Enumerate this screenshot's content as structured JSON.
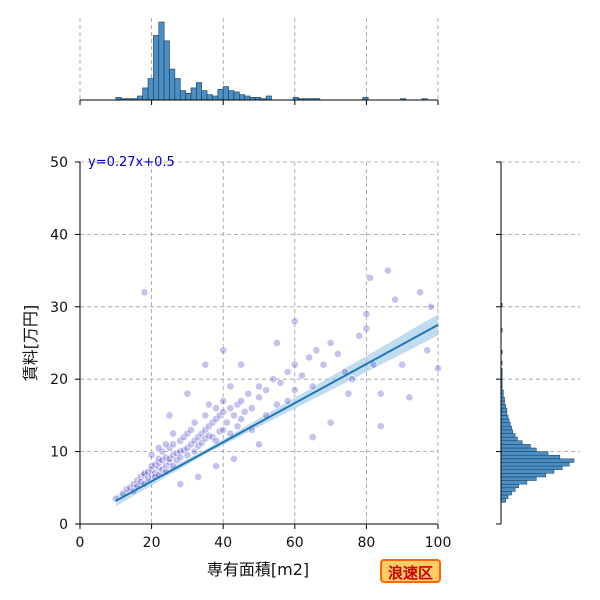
{
  "badge": "浪速区",
  "colors": {
    "points": "#3b36c8",
    "hist": "#4b8fc4",
    "hist_edge": "#1c3a57",
    "regression": "#1f77b4",
    "ci_band": "#a8cde8",
    "grid": "#9a9a9a",
    "badge_bg": "#ffcc66",
    "badge_border": "#ff6600",
    "badge_text": "#cc0000"
  },
  "chart_data": {
    "type": "scatter",
    "title": "",
    "xlabel": "専有面積[m2]",
    "ylabel": "賃料[万円]",
    "xlim": [
      0,
      100
    ],
    "ylim": [
      0,
      50
    ],
    "xticks": [
      0,
      20,
      40,
      60,
      80,
      100
    ],
    "yticks": [
      0,
      10,
      20,
      30,
      40,
      50
    ],
    "grid": true,
    "regression": {
      "slope": 0.27,
      "intercept": 0.5,
      "x_range": [
        10,
        100
      ],
      "equation_label": "y=0.27x+0.5"
    },
    "points": [
      [
        10,
        3.5
      ],
      [
        12,
        4.2
      ],
      [
        13,
        4.8
      ],
      [
        14,
        5.0
      ],
      [
        15,
        5.5
      ],
      [
        15,
        4.5
      ],
      [
        16,
        6.0
      ],
      [
        16,
        5.2
      ],
      [
        17,
        6.5
      ],
      [
        17,
        5.8
      ],
      [
        18,
        6.8
      ],
      [
        18,
        7.0
      ],
      [
        18,
        5.5
      ],
      [
        19,
        7.2
      ],
      [
        19,
        6.3
      ],
      [
        20,
        6.8
      ],
      [
        20,
        7.5
      ],
      [
        20,
        8.0
      ],
      [
        20,
        9.5
      ],
      [
        21,
        7.0
      ],
      [
        21,
        8.2
      ],
      [
        21,
        6.5
      ],
      [
        22,
        7.8
      ],
      [
        22,
        8.5
      ],
      [
        22,
        9.0
      ],
      [
        22,
        6.8
      ],
      [
        23,
        7.5
      ],
      [
        23,
        8.8
      ],
      [
        23,
        10.0
      ],
      [
        24,
        8.0
      ],
      [
        24,
        9.2
      ],
      [
        24,
        7.2
      ],
      [
        25,
        8.5
      ],
      [
        25,
        10.5
      ],
      [
        25,
        9.0
      ],
      [
        26,
        9.5
      ],
      [
        26,
        8.0
      ],
      [
        26,
        11.0
      ],
      [
        27,
        9.8
      ],
      [
        27,
        8.8
      ],
      [
        28,
        10.0
      ],
      [
        28,
        11.5
      ],
      [
        28,
        9.2
      ],
      [
        29,
        10.2
      ],
      [
        29,
        12.0
      ],
      [
        30,
        10.5
      ],
      [
        30,
        9.5
      ],
      [
        30,
        12.5
      ],
      [
        31,
        11.0
      ],
      [
        31,
        13.0
      ],
      [
        32,
        11.5
      ],
      [
        32,
        10.0
      ],
      [
        32,
        14.0
      ],
      [
        33,
        12.0
      ],
      [
        33,
        10.8
      ],
      [
        34,
        12.5
      ],
      [
        34,
        11.2
      ],
      [
        35,
        13.0
      ],
      [
        35,
        11.8
      ],
      [
        35,
        15.0
      ],
      [
        36,
        13.5
      ],
      [
        36,
        12.2
      ],
      [
        37,
        14.0
      ],
      [
        37,
        12.0
      ],
      [
        38,
        14.5
      ],
      [
        38,
        11.5
      ],
      [
        38,
        16.0
      ],
      [
        39,
        15.0
      ],
      [
        39,
        12.8
      ],
      [
        40,
        15.5
      ],
      [
        40,
        13.0
      ],
      [
        40,
        17.0
      ],
      [
        41,
        14.0
      ],
      [
        42,
        16.0
      ],
      [
        42,
        12.5
      ],
      [
        43,
        15.0
      ],
      [
        44,
        16.5
      ],
      [
        44,
        13.5
      ],
      [
        45,
        17.0
      ],
      [
        45,
        14.5
      ],
      [
        46,
        15.5
      ],
      [
        47,
        18.0
      ],
      [
        48,
        16.0
      ],
      [
        48,
        13.0
      ],
      [
        50,
        17.5
      ],
      [
        50,
        19.0
      ],
      [
        52,
        15.0
      ],
      [
        52,
        18.5
      ],
      [
        54,
        20.0
      ],
      [
        55,
        16.5
      ],
      [
        56,
        19.5
      ],
      [
        58,
        21.0
      ],
      [
        58,
        17.0
      ],
      [
        60,
        22.0
      ],
      [
        60,
        18.5
      ],
      [
        62,
        20.5
      ],
      [
        64,
        23.0
      ],
      [
        65,
        19.0
      ],
      [
        66,
        24.0
      ],
      [
        68,
        22.0
      ],
      [
        70,
        25.0
      ],
      [
        72,
        23.5
      ],
      [
        74,
        21.0
      ],
      [
        76,
        20.0
      ],
      [
        78,
        26.0
      ],
      [
        80,
        27.0
      ],
      [
        80,
        29.0
      ],
      [
        81,
        34.0
      ],
      [
        82,
        22.0
      ],
      [
        84,
        18.0
      ],
      [
        86,
        35.0
      ],
      [
        88,
        31.0
      ],
      [
        90,
        22.0
      ],
      [
        92,
        17.5
      ],
      [
        95,
        32.0
      ],
      [
        97,
        24.0
      ],
      [
        98,
        30.0
      ],
      [
        100,
        21.5
      ],
      [
        18,
        32.0
      ],
      [
        25,
        15.0
      ],
      [
        30,
        18.0
      ],
      [
        35,
        22.0
      ],
      [
        40,
        24.0
      ],
      [
        45,
        22.0
      ],
      [
        50,
        11.0
      ],
      [
        55,
        25.0
      ],
      [
        60,
        28.0
      ],
      [
        65,
        12.0
      ],
      [
        70,
        14.0
      ],
      [
        75,
        18.0
      ],
      [
        84,
        13.5
      ],
      [
        28,
        5.5
      ],
      [
        33,
        6.5
      ],
      [
        38,
        8.0
      ],
      [
        43,
        9.0
      ],
      [
        26,
        12.5
      ],
      [
        24,
        11.0
      ],
      [
        22,
        10.5
      ],
      [
        36,
        16.5
      ],
      [
        42,
        19.0
      ]
    ]
  },
  "hist_top": {
    "bin_start": 10,
    "bin_width": 1.5,
    "counts": [
      2,
      1,
      1,
      1,
      3,
      9,
      16,
      48,
      58,
      44,
      23,
      16,
      7,
      5,
      9,
      13,
      7,
      4,
      3,
      8,
      10,
      7,
      6,
      4,
      3,
      2,
      2,
      1,
      3,
      0,
      0,
      0,
      0,
      2,
      1,
      1,
      1,
      1,
      0,
      0,
      0,
      0,
      0,
      0,
      0,
      0,
      2,
      0,
      0,
      0,
      0,
      0,
      0,
      1,
      0,
      0,
      0,
      1,
      0,
      0
    ]
  },
  "hist_right": {
    "bin_start": 3,
    "bin_width": 0.5,
    "counts": [
      4,
      6,
      9,
      12,
      15,
      22,
      30,
      38,
      45,
      52,
      58,
      62,
      50,
      40,
      30,
      25,
      18,
      14,
      12,
      10,
      9,
      8,
      7,
      6,
      5,
      5,
      4,
      3,
      3,
      2,
      2,
      1,
      1,
      1,
      1,
      1,
      1,
      0,
      1,
      0,
      0,
      1,
      0,
      0,
      0,
      0,
      0,
      1,
      0,
      0,
      0,
      0,
      0,
      0,
      1
    ]
  }
}
